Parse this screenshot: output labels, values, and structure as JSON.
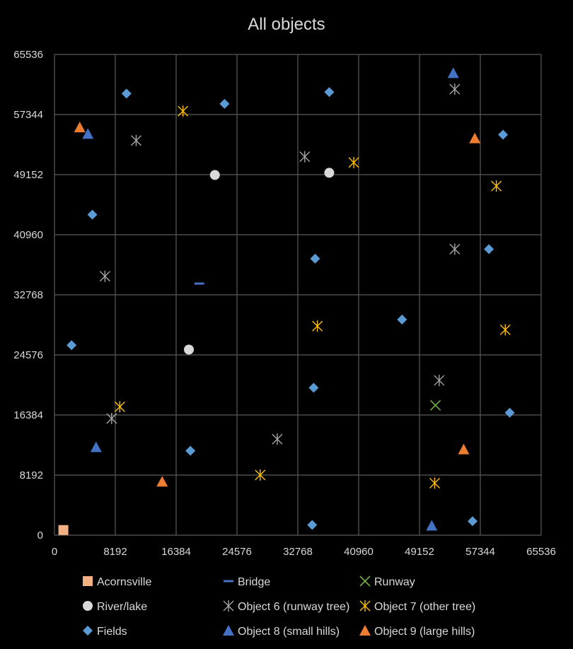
{
  "chart_data": {
    "type": "scatter",
    "title": "All objects",
    "xlabel": "",
    "ylabel": "",
    "xlim": [
      0,
      65536
    ],
    "ylim": [
      0,
      65536
    ],
    "x_ticks": [
      0,
      8192,
      16384,
      24576,
      32768,
      40960,
      49152,
      57344,
      65536
    ],
    "y_ticks": [
      0,
      8192,
      16384,
      24576,
      32768,
      40960,
      49152,
      57344,
      65536
    ],
    "grid": true,
    "legend_position": "bottom",
    "series": [
      {
        "name": "Acornsville",
        "marker": "square",
        "color": "#F4B183",
        "points": [
          [
            1200,
            700
          ]
        ]
      },
      {
        "name": "Bridge",
        "marker": "dash",
        "color": "#4472C4",
        "points": [
          [
            19500,
            34300
          ]
        ]
      },
      {
        "name": "Runway",
        "marker": "x",
        "color": "#70AD47",
        "points": [
          [
            51300,
            17700
          ]
        ]
      },
      {
        "name": "River/lake",
        "marker": "circle",
        "color": "#D9D9D9",
        "points": [
          [
            21600,
            49100
          ],
          [
            37000,
            49400
          ],
          [
            18100,
            25300
          ]
        ]
      },
      {
        "name": "Object 6 (runway tree)",
        "marker": "star",
        "color": "#A6A6A6",
        "points": [
          [
            53900,
            60800
          ],
          [
            11000,
            53800
          ],
          [
            33700,
            51600
          ],
          [
            53900,
            39000
          ],
          [
            6800,
            35300
          ],
          [
            51800,
            21100
          ],
          [
            7700,
            15900
          ],
          [
            30000,
            13100
          ]
        ]
      },
      {
        "name": "Object 7 (other tree)",
        "marker": "star",
        "color": "#FFC000",
        "points": [
          [
            17300,
            57800
          ],
          [
            40300,
            50800
          ],
          [
            59500,
            47600
          ],
          [
            35400,
            28500
          ],
          [
            60700,
            28000
          ],
          [
            8800,
            17500
          ],
          [
            27700,
            8200
          ],
          [
            51200,
            7100
          ]
        ]
      },
      {
        "name": "Fields",
        "marker": "diamond",
        "color": "#5B9BD5",
        "points": [
          [
            9700,
            60200
          ],
          [
            22900,
            58800
          ],
          [
            37000,
            60400
          ],
          [
            60400,
            54600
          ],
          [
            5100,
            43700
          ],
          [
            35100,
            37700
          ],
          [
            58500,
            39000
          ],
          [
            46800,
            29400
          ],
          [
            2300,
            25900
          ],
          [
            34900,
            20100
          ],
          [
            61300,
            16700
          ],
          [
            18300,
            11500
          ],
          [
            34700,
            1400
          ],
          [
            56300,
            1900
          ]
        ]
      },
      {
        "name": "Object 8 (small hills)",
        "marker": "triangle",
        "color": "#4472C4",
        "points": [
          [
            53700,
            63000
          ],
          [
            4500,
            54700
          ],
          [
            5600,
            12000
          ],
          [
            50800,
            1300
          ]
        ]
      },
      {
        "name": "Object 9 (large hills)",
        "marker": "triangle",
        "color": "#ED7D31",
        "points": [
          [
            3400,
            55600
          ],
          [
            56600,
            54100
          ],
          [
            55100,
            11700
          ],
          [
            14500,
            7300
          ]
        ]
      }
    ]
  }
}
